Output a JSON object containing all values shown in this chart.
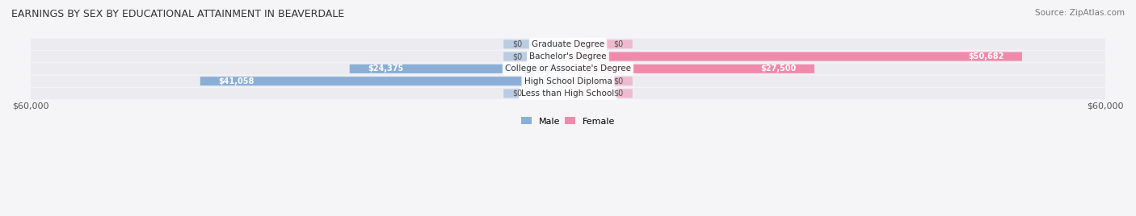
{
  "title": "EARNINGS BY SEX BY EDUCATIONAL ATTAINMENT IN BEAVERDALE",
  "source": "Source: ZipAtlas.com",
  "categories": [
    "Less than High School",
    "High School Diploma",
    "College or Associate's Degree",
    "Bachelor's Degree",
    "Graduate Degree"
  ],
  "male_values": [
    0,
    41058,
    24375,
    0,
    0
  ],
  "female_values": [
    0,
    0,
    27500,
    50682,
    0
  ],
  "male_color": "#8aaed6",
  "female_color": "#f08aab",
  "male_color_dark": "#6699cc",
  "female_color_dark": "#e8799a",
  "male_label_color": "#ffffff",
  "female_label_color": "#ffffff",
  "bar_bg_color": "#e8e8ec",
  "axis_max": 60000,
  "legend_male_label": "Male",
  "legend_female_label": "Female",
  "background_color": "#f5f5f8",
  "bar_row_bg": "#ececf0"
}
